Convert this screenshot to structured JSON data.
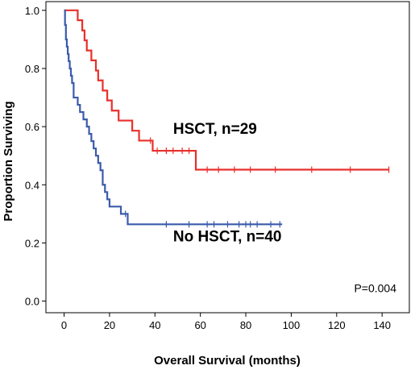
{
  "chart_data": {
    "type": "line",
    "subtype": "kaplan-meier step curve with censor marks",
    "title": "",
    "xlabel": "Overall Survival (months)",
    "ylabel": "Proportion Surviving",
    "xlim": [
      -8,
      152
    ],
    "ylim": [
      -0.04,
      1.03
    ],
    "xticks": [
      0,
      20,
      40,
      60,
      80,
      100,
      120,
      140
    ],
    "yticks": [
      0.0,
      0.2,
      0.4,
      0.6,
      0.8,
      1.0
    ],
    "ytick_labels": [
      "0.0",
      "0.2",
      "0.4",
      "0.6",
      "0.8",
      "1.0"
    ],
    "grid": false,
    "legend": "none (curves labeled directly)",
    "series": [
      {
        "name": "HSCT, n=29",
        "color": "#e8302c",
        "steps": [
          [
            0,
            1.0
          ],
          [
            6,
            0.966
          ],
          [
            8,
            0.931
          ],
          [
            9,
            0.897
          ],
          [
            10,
            0.862
          ],
          [
            12,
            0.828
          ],
          [
            14,
            0.793
          ],
          [
            15,
            0.759
          ],
          [
            17,
            0.724
          ],
          [
            19,
            0.69
          ],
          [
            21,
            0.655
          ],
          [
            24,
            0.621
          ],
          [
            30,
            0.586
          ],
          [
            33,
            0.552
          ],
          [
            39,
            0.517
          ],
          [
            58,
            0.452
          ]
        ],
        "end_x": 143,
        "censor_x": [
          38,
          41,
          45,
          48,
          52,
          55,
          63,
          68,
          75,
          82,
          93,
          109,
          126,
          143
        ]
      },
      {
        "name": "No HSCT, n=40",
        "color": "#3b5bab",
        "steps": [
          [
            0,
            1.0
          ],
          [
            0.4,
            0.95
          ],
          [
            0.8,
            0.9
          ],
          [
            1.2,
            0.875
          ],
          [
            1.6,
            0.85
          ],
          [
            2.0,
            0.825
          ],
          [
            2.5,
            0.8
          ],
          [
            3.0,
            0.775
          ],
          [
            3.5,
            0.75
          ],
          [
            4.2,
            0.7
          ],
          [
            6.0,
            0.675
          ],
          [
            7.0,
            0.65
          ],
          [
            8.5,
            0.625
          ],
          [
            10.0,
            0.6
          ],
          [
            11.0,
            0.575
          ],
          [
            12.0,
            0.55
          ],
          [
            13.0,
            0.525
          ],
          [
            14.0,
            0.5
          ],
          [
            15.0,
            0.475
          ],
          [
            16.0,
            0.45
          ],
          [
            17.0,
            0.4
          ],
          [
            18.0,
            0.375
          ],
          [
            19.0,
            0.35
          ],
          [
            20.0,
            0.325
          ],
          [
            25.0,
            0.3
          ],
          [
            28.0,
            0.264
          ]
        ],
        "end_x": 96,
        "censor_x": [
          27,
          45,
          55,
          63,
          66,
          72,
          77,
          80,
          82,
          85,
          91,
          95
        ]
      }
    ],
    "annotations": [
      {
        "text": "HSCT, n=29",
        "x": 48,
        "y": 0.575
      },
      {
        "text": "No HSCT, n=40",
        "x": 48,
        "y": 0.205
      },
      {
        "text": "P=0.004",
        "x": 137,
        "y": 0.03
      }
    ]
  }
}
